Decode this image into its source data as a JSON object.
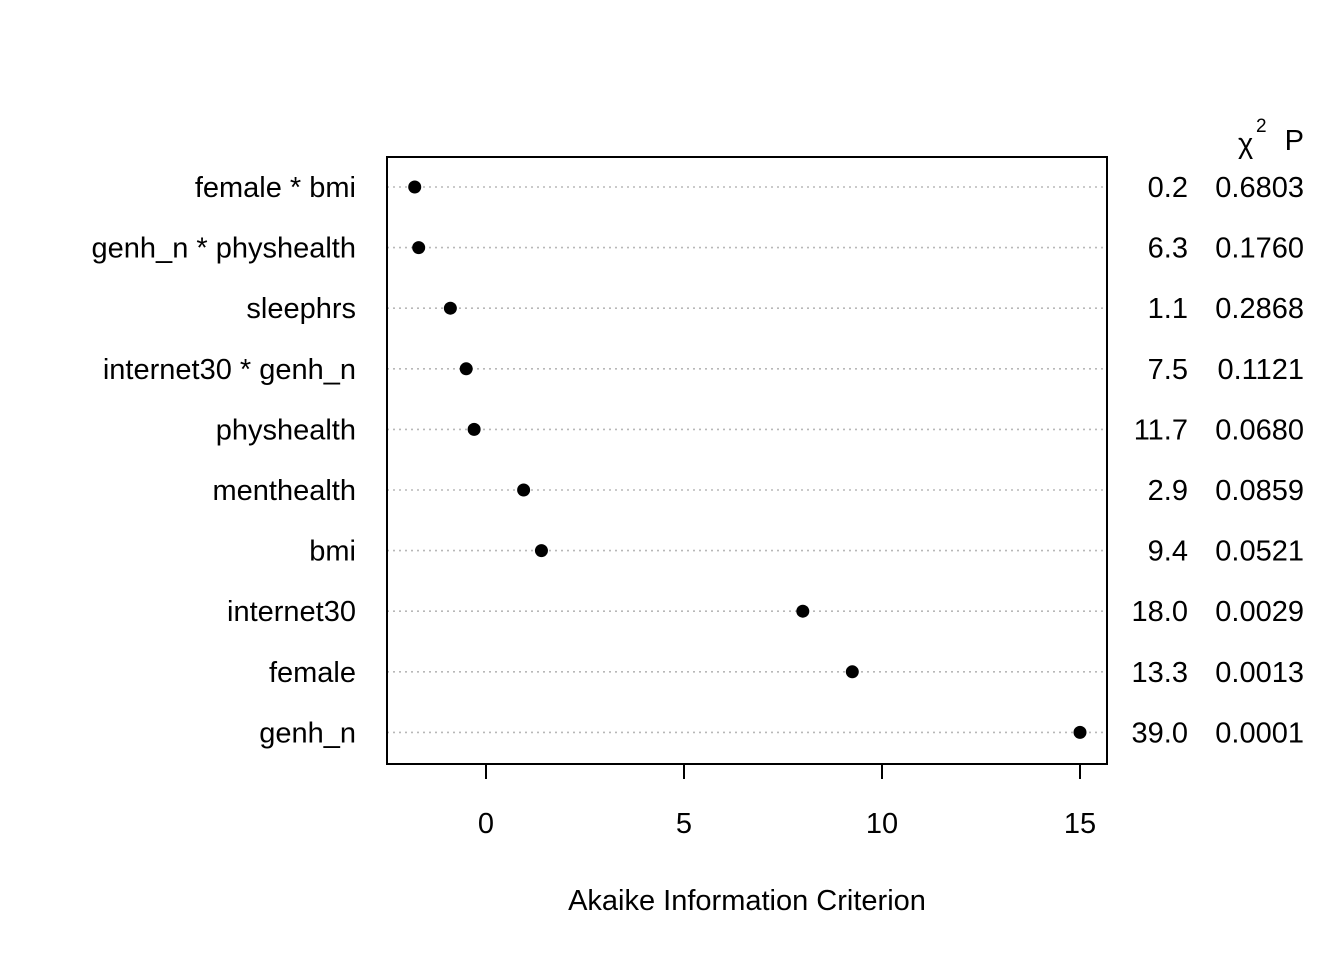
{
  "chart_data": {
    "type": "scatter",
    "xlabel": "Akaike Information Criterion",
    "xlim": [
      -2.5,
      15.5
    ],
    "x_ticks": [
      "0",
      "5",
      "10",
      "15"
    ],
    "grid": "horizontal dotted",
    "columns": {
      "chi2": "χ",
      "chi2_sup": "2",
      "p": "P"
    },
    "rows": [
      {
        "label": "female * bmi",
        "aic": -1.8,
        "chi2": "0.2",
        "p": "0.6803"
      },
      {
        "label": "genh_n * physhealth",
        "aic": -1.7,
        "chi2": "6.3",
        "p": "0.1760"
      },
      {
        "label": "sleephrs",
        "aic": -0.9,
        "chi2": "1.1",
        "p": "0.2868"
      },
      {
        "label": "internet30 * genh_n",
        "aic": -0.5,
        "chi2": "7.5",
        "p": "0.1121"
      },
      {
        "label": "physhealth",
        "aic": -0.3,
        "chi2": "11.7",
        "p": "0.0680"
      },
      {
        "label": "menthealth",
        "aic": 0.95,
        "chi2": "2.9",
        "p": "0.0859"
      },
      {
        "label": "bmi",
        "aic": 1.4,
        "chi2": "9.4",
        "p": "0.0521"
      },
      {
        "label": "internet30",
        "aic": 8.0,
        "chi2": "18.0",
        "p": "0.0029"
      },
      {
        "label": "female",
        "aic": 9.25,
        "chi2": "13.3",
        "p": "0.0013"
      },
      {
        "label": "genh_n",
        "aic": 15.0,
        "chi2": "39.0",
        "p": "0.0001"
      }
    ]
  }
}
